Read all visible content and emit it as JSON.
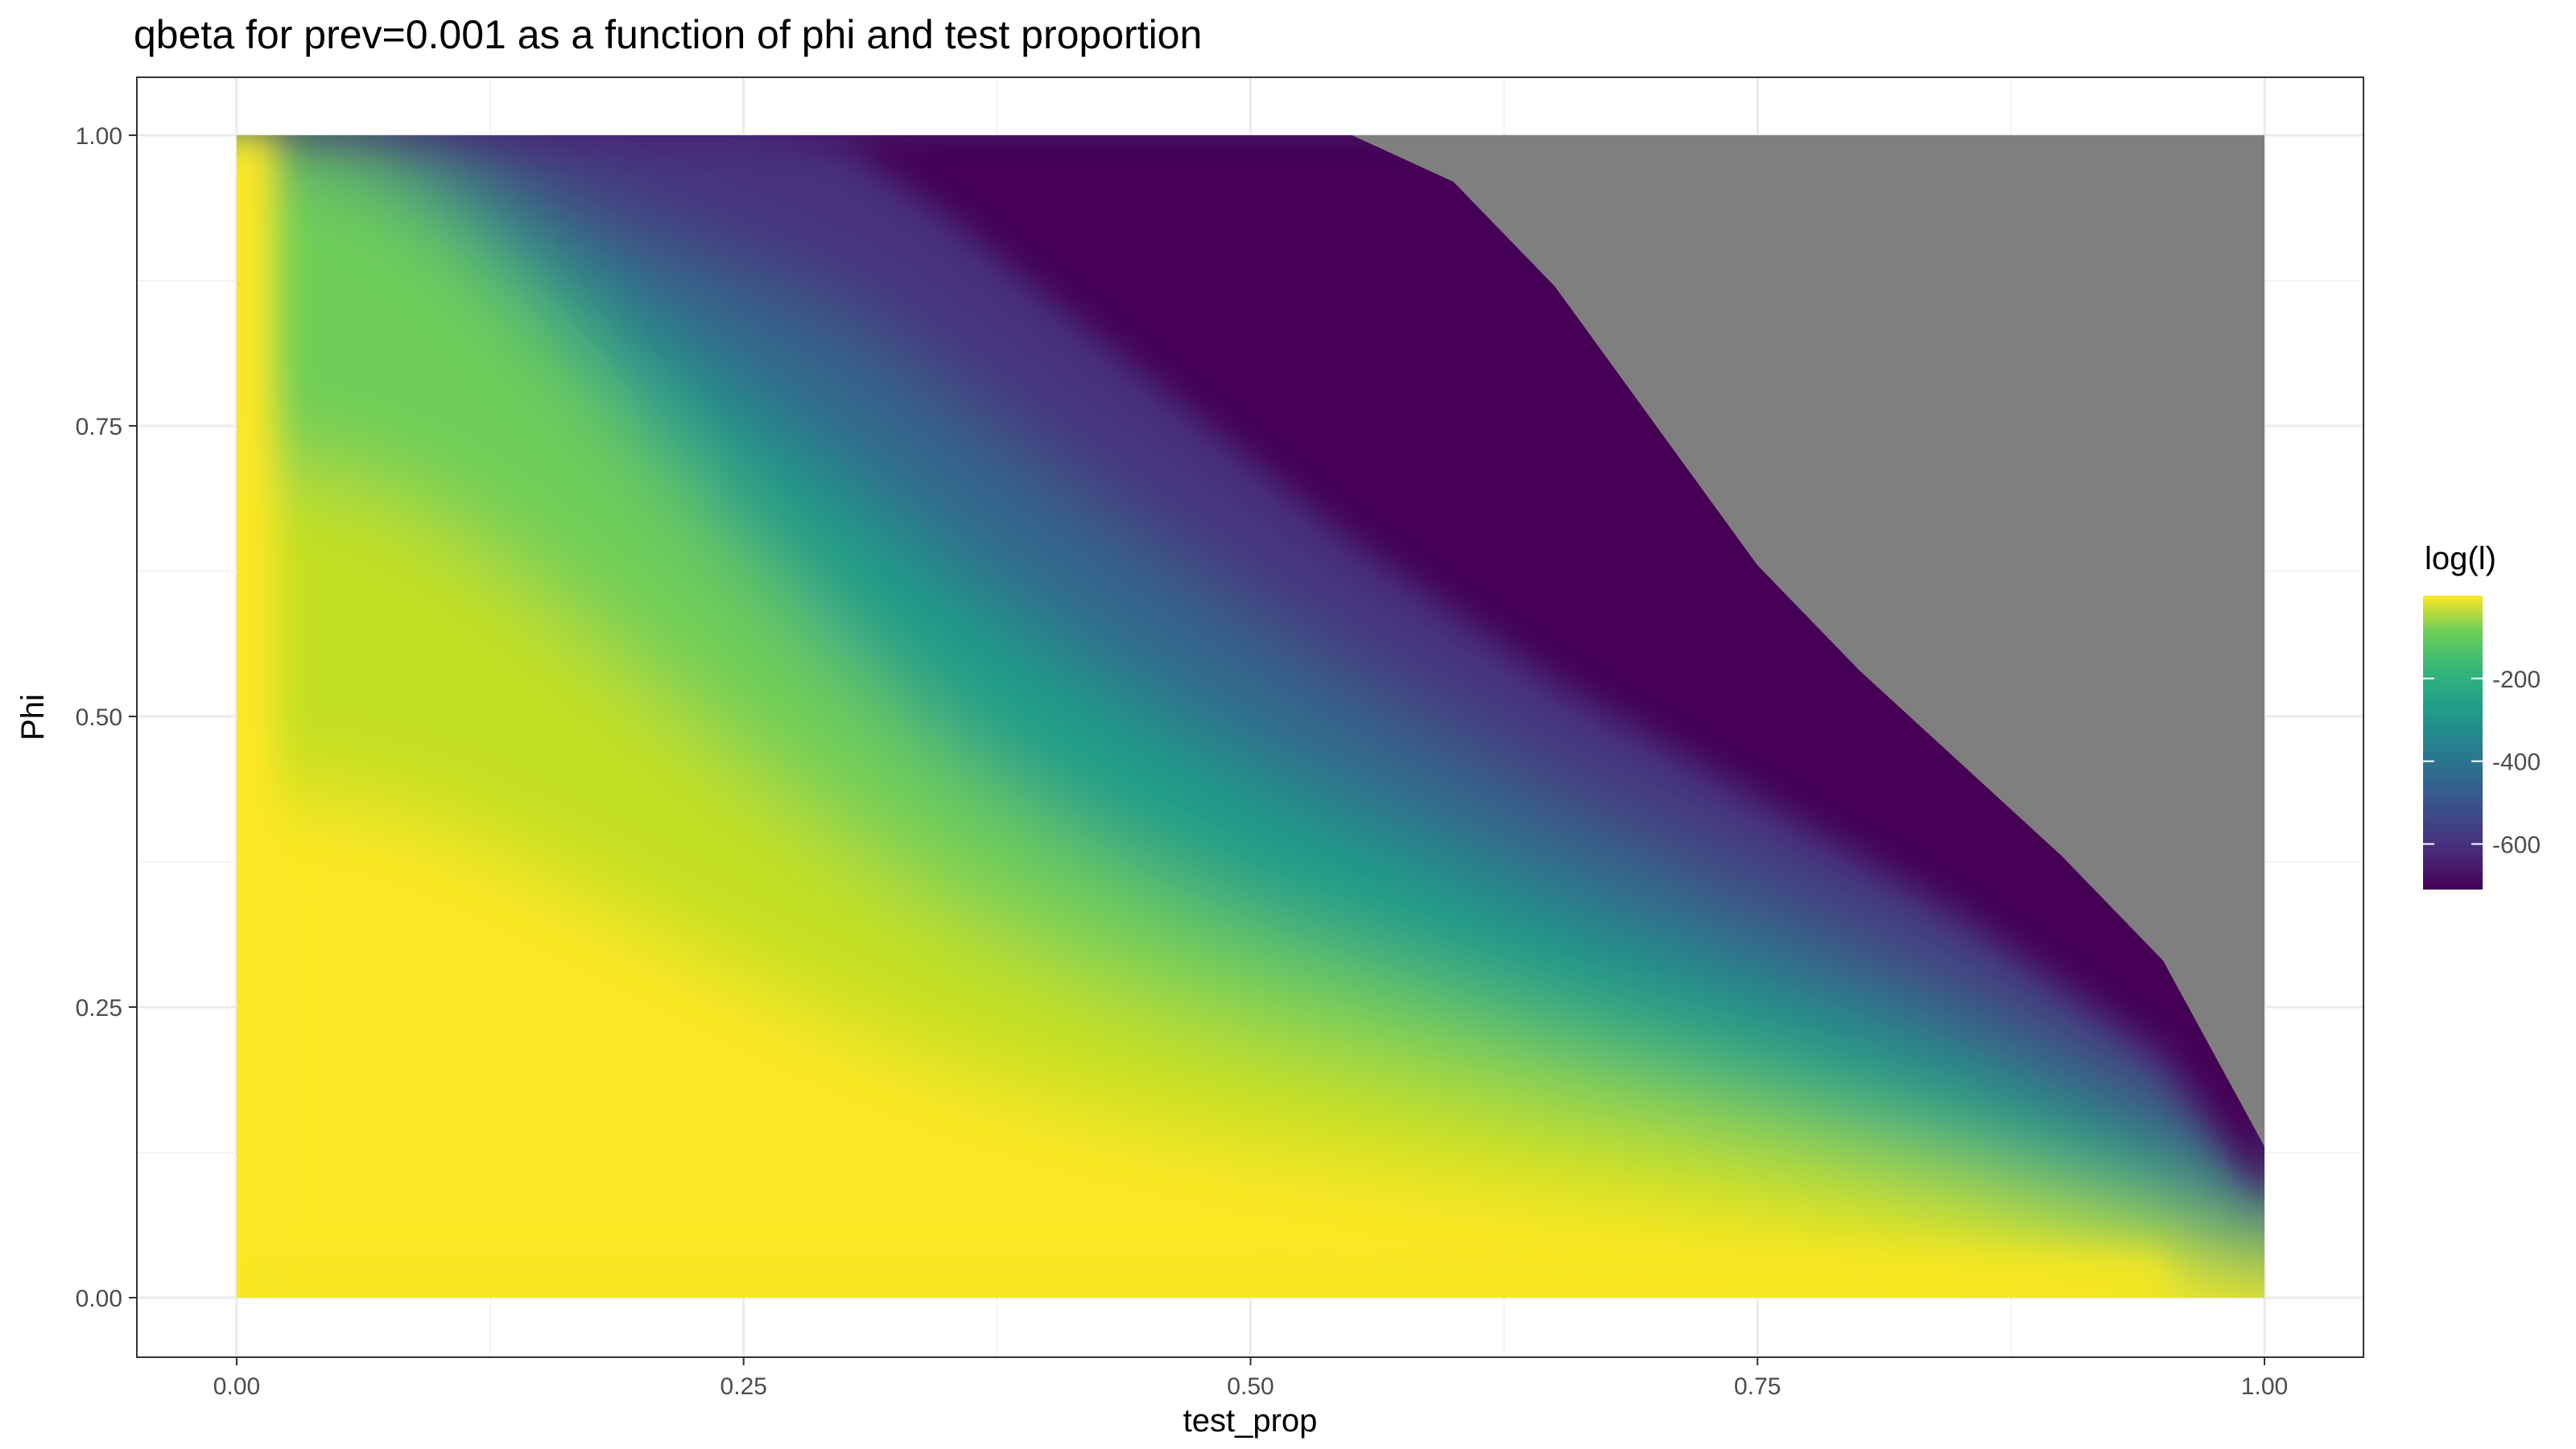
{
  "chart_data": {
    "type": "heatmap",
    "title": "qbeta for prev=0.001 as a function of phi and test proportion",
    "xlabel": "test_prop",
    "ylabel": "Phi",
    "xlim": [
      0,
      1
    ],
    "ylim": [
      0,
      1
    ],
    "x_ticks": [
      "0.00",
      "0.25",
      "0.50",
      "0.75",
      "1.00"
    ],
    "y_ticks": [
      "0.00",
      "0.25",
      "0.50",
      "0.75",
      "1.00"
    ],
    "grid": true,
    "legend": {
      "title": "log(l)",
      "placement": "right",
      "ticks": [
        "-200",
        "-400",
        "-600"
      ],
      "range": [
        -710,
        0
      ],
      "colorscale": "viridis"
    },
    "na_color": "#7f7f7f",
    "boundaries": {
      "description_values": "phi at which log(l) crosses each level, by test_prop",
      "test_prop": [
        0.0,
        0.05,
        0.1,
        0.15,
        0.2,
        0.25,
        0.3,
        0.35,
        0.4,
        0.45,
        0.5,
        0.55,
        0.6,
        0.65,
        0.7,
        0.75,
        0.8,
        0.85,
        0.9,
        0.95,
        1.0
      ],
      "level_minus_200_phi": [
        1.0,
        0.985,
        0.93,
        0.84,
        0.74,
        0.64,
        0.55,
        0.47,
        0.41,
        0.36,
        0.32,
        0.29,
        0.26,
        0.23,
        0.205,
        0.18,
        0.155,
        0.13,
        0.1,
        0.075,
        0.04
      ],
      "level_minus_710_phi": [
        1.0,
        1.0,
        1.0,
        1.0,
        1.0,
        1.0,
        0.99,
        0.93,
        0.86,
        0.79,
        0.72,
        0.65,
        0.59,
        0.53,
        0.48,
        0.43,
        0.38,
        0.33,
        0.27,
        0.21,
        0.09
      ],
      "na_region_phi": [
        1.0,
        1.0,
        1.0,
        1.0,
        1.0,
        1.0,
        1.0,
        1.0,
        1.0,
        1.0,
        1.0,
        1.0,
        0.96,
        0.87,
        0.75,
        0.63,
        0.54,
        0.46,
        0.38,
        0.29,
        0.13
      ]
    }
  }
}
